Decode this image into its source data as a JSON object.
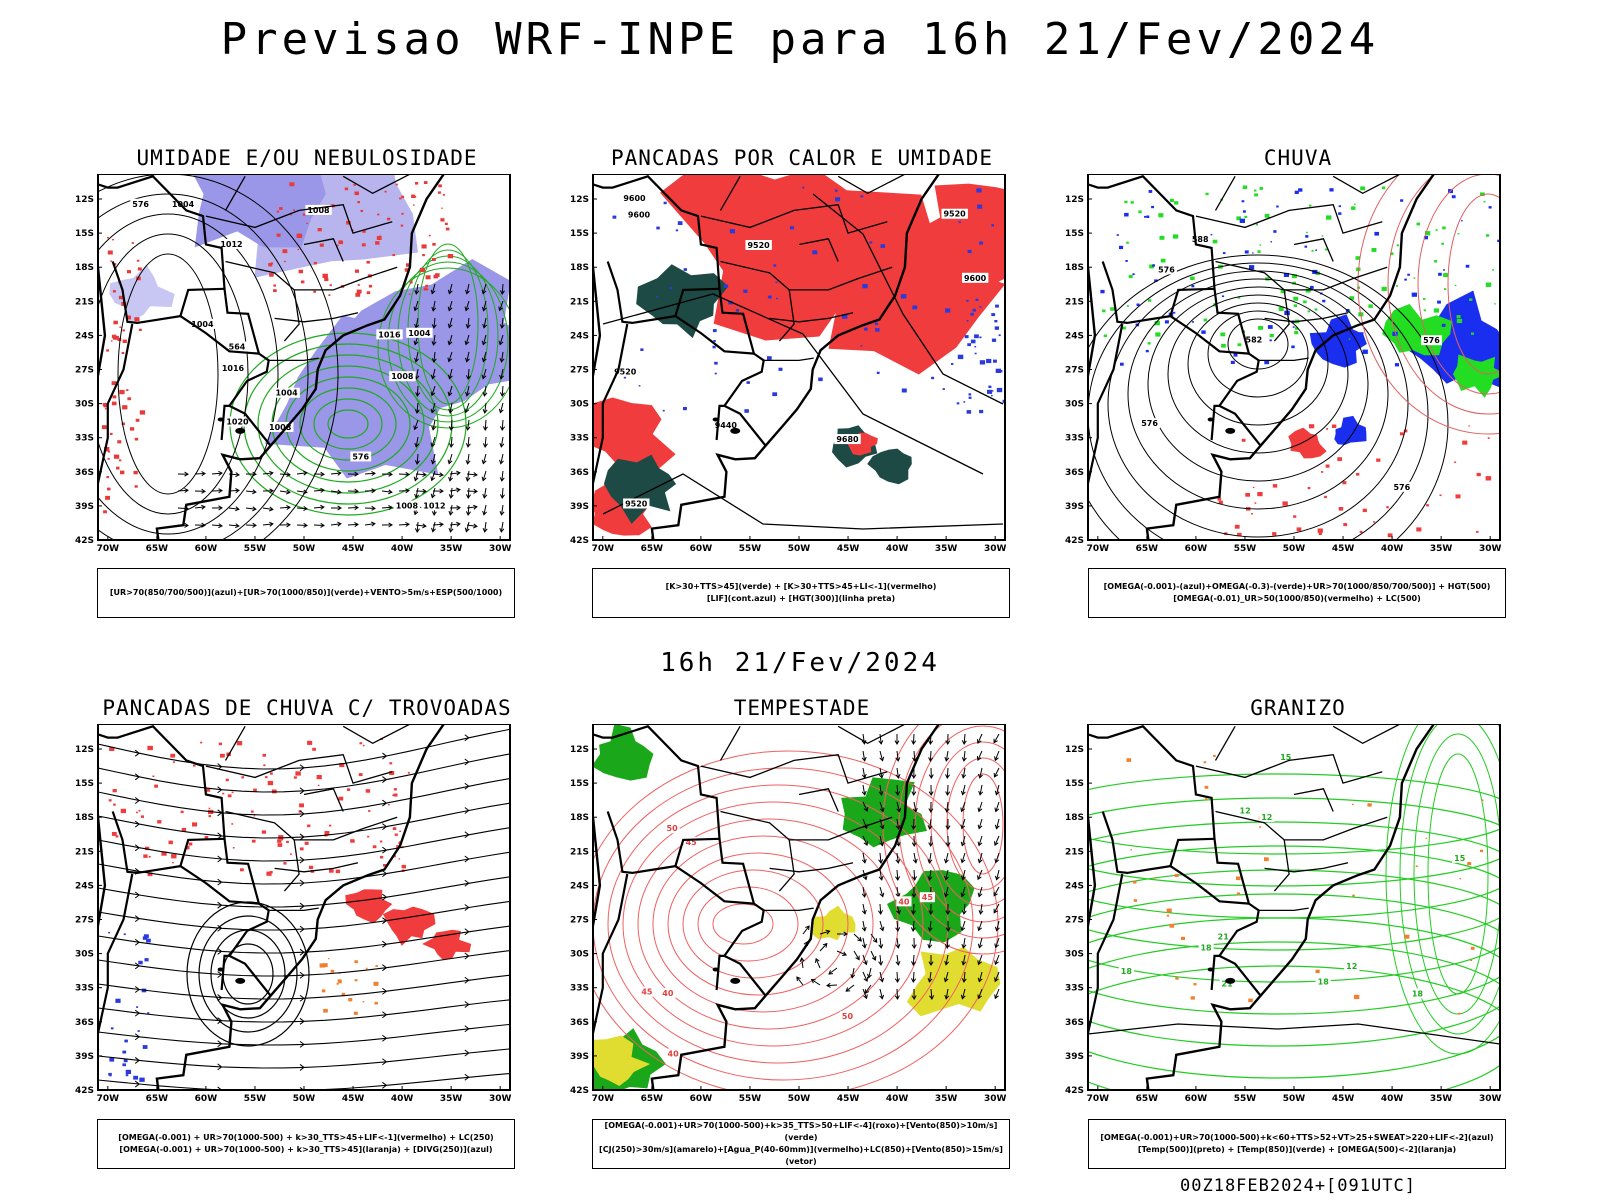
{
  "title": "Previsao WRF-INPE  para 16h 21/Fev/2024",
  "mid_date": "16h 21/Fev/2024",
  "footer": "00Z18FEB2024+[091UTC]",
  "lat_labels": [
    "12S",
    "15S",
    "18S",
    "21S",
    "24S",
    "27S",
    "30S",
    "33S",
    "36S",
    "39S",
    "42S"
  ],
  "lon_labels": [
    "70W",
    "65W",
    "60W",
    "55W",
    "50W",
    "45W",
    "40W",
    "35W",
    "30W"
  ],
  "panels": [
    {
      "title": "UMIDADE E/OU NEBULOSIDADE",
      "legend": [
        "[UR>70(850/700/500)](azul)+[UR>70(1000/850)](verde)+VENTO>5m/s+ESP(500/1000)"
      ],
      "contour_labels": [
        "1004",
        "1004",
        "1004",
        "1008",
        "1012",
        "1012",
        "1008",
        "1016",
        "1020",
        "1016",
        "1004",
        "1008",
        "576",
        "1008",
        "564",
        "576"
      ],
      "colors": {
        "blue": "#9a96e8",
        "green": "#1faa1f",
        "red": "#e83a3a"
      }
    },
    {
      "title": "PANCADAS POR CALOR E UMIDADE",
      "legend": [
        "[K>30+TTS>45](verde) + [K>30+TTS>45+LI<-1](vermelho)",
        "[LIF](cont.azul) + [HGT(300)](linha preta)"
      ],
      "contour_labels": [
        "9600",
        "9600",
        "9520",
        "9520",
        "9600",
        "9680",
        "9520",
        "9440",
        "9520"
      ],
      "colors": {
        "red": "#f03c3c",
        "teal": "#1e4a46",
        "blue": "#2a3adc"
      }
    },
    {
      "title": "CHUVA",
      "legend": [
        "[OMEGA(-0.001)-(azul)+OMEGA(-0.3)-(verde)+UR>70(1000/850/700/500)] + HGT(500)",
        "[OMEGA(-0.01)_UR>50(1000/850)(vermelho) + LC(500)"
      ],
      "contour_labels": [
        "588",
        "576",
        "582",
        "576",
        "576",
        "576"
      ],
      "colors": {
        "red": "#f03c3c",
        "green": "#22dd22",
        "blue": "#1a2ef0"
      }
    },
    {
      "title": "PANCADAS DE CHUVA C/ TROVOADAS",
      "legend": [
        "[OMEGA(-0.001) + UR>70(1000-500) + k>30_TTS>45+LIF<-1](vermelho) + LC(250)",
        "[OMEGA(-0.001) + UR>70(1000-500) + k>30_TTS>45](laranja) + [DIVG(250)](azul)"
      ],
      "contour_labels": [],
      "colors": {
        "red": "#f03c3c",
        "orange": "#f08030",
        "blue": "#2a3adc"
      }
    },
    {
      "title": "TEMPESTADE",
      "legend": [
        "[OMEGA(-0.001)+UR>70(1000-500)+k>35_TTS>50+LIF<-4](roxo)+[Vento(850)>10m/s](verde)",
        "[CJ(250)>30m/s](amarelo)+[Agua_P(40-60mm)](vermelho)+LC(850)+[Vento(850)>15m/s](vetor)"
      ],
      "contour_labels": [
        "50",
        "45",
        "40",
        "45",
        "50",
        "40",
        "40",
        "45"
      ],
      "colors": {
        "green": "#1aa81a",
        "yellow": "#e0dc30",
        "red": "#f06060"
      }
    },
    {
      "title": "GRANIZO",
      "legend": [
        "[OMEGA(-0.001)+UR>70(1000-500)+k<60+TTS>52+VT>25+SWEAT>220+LIF<-2](azul)",
        "[Temp(500)](preto) + [Temp(850)](verde) + [OMEGA(500)<-2](laranja)"
      ],
      "contour_labels": [
        "21",
        "18",
        "18",
        "21",
        "18",
        "15",
        "12",
        "12",
        "12",
        "15",
        "18"
      ],
      "colors": {
        "green": "#22cc22",
        "orange": "#f08030"
      }
    }
  ]
}
